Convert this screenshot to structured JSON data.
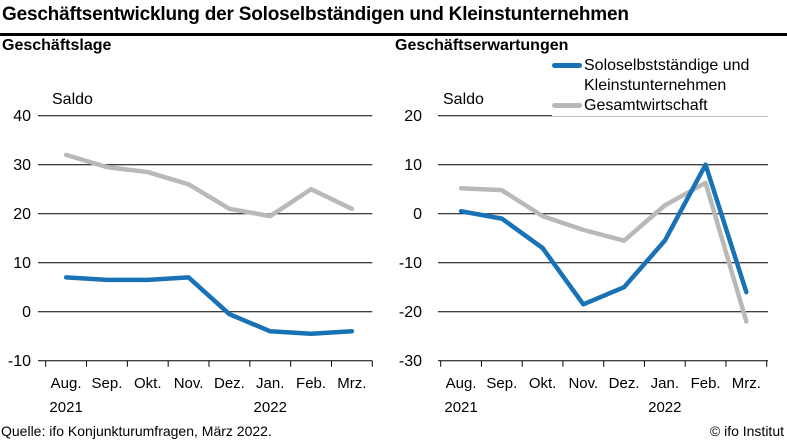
{
  "header": {
    "title": "Geschäftsentwicklung der Soloselbständigen und Kleinstunternehmen"
  },
  "legend": {
    "position": "top-right",
    "items": [
      {
        "label": "Soloselbstständige und Kleinstunternehmen",
        "color_key": "solo_blue"
      },
      {
        "label": "Gesamtwirtschaft",
        "color_key": "gesamt_gray"
      }
    ]
  },
  "colors": {
    "solo_blue": "#1a72b6",
    "gesamt_gray": "#b9b9b9",
    "axis": "#000000"
  },
  "footer": {
    "source": "Quelle: ifo Konjunkturumfragen, März 2022.",
    "copyright": "© ifo Institut"
  },
  "chart_data": [
    {
      "type": "line",
      "title": "Geschäftslage",
      "unit_label": "Saldo",
      "categories": [
        "Aug.",
        "Sep.",
        "Okt.",
        "Nov.",
        "Dez.",
        "Jan.",
        "Feb.",
        "Mrz."
      ],
      "year_labels": [
        {
          "text": "2021",
          "at_category": 0
        },
        {
          "text": "2022",
          "at_category": 5
        }
      ],
      "ylim": [
        -10,
        40
      ],
      "ytick_step": 10,
      "grid": "horizontal",
      "series": [
        {
          "name": "Soloselbstständige und Kleinstunternehmen",
          "color_key": "solo_blue",
          "values": [
            7,
            6.5,
            6.5,
            7,
            -0.5,
            -4,
            -4.5,
            -4
          ]
        },
        {
          "name": "Gesamtwirtschaft",
          "color_key": "gesamt_gray",
          "values": [
            32,
            29.5,
            28.5,
            26,
            21,
            19.5,
            25,
            21
          ]
        }
      ]
    },
    {
      "type": "line",
      "title": "Geschäftserwartungen",
      "unit_label": "Saldo",
      "categories": [
        "Aug.",
        "Sep.",
        "Okt.",
        "Nov.",
        "Dez.",
        "Jan.",
        "Feb.",
        "Mrz."
      ],
      "year_labels": [
        {
          "text": "2021",
          "at_category": 0
        },
        {
          "text": "2022",
          "at_category": 5
        }
      ],
      "ylim": [
        -30,
        20
      ],
      "ytick_step": 10,
      "grid": "horizontal",
      "series": [
        {
          "name": "Soloselbstständige und Kleinstunternehmen",
          "color_key": "solo_blue",
          "values": [
            0.5,
            -1,
            -7,
            -18.5,
            -15,
            -5.5,
            10,
            -16
          ]
        },
        {
          "name": "Gesamtwirtschaft",
          "color_key": "gesamt_gray",
          "values": [
            5.2,
            4.8,
            -0.5,
            -3.3,
            -5.5,
            1.7,
            6.3,
            -22
          ]
        }
      ]
    }
  ]
}
